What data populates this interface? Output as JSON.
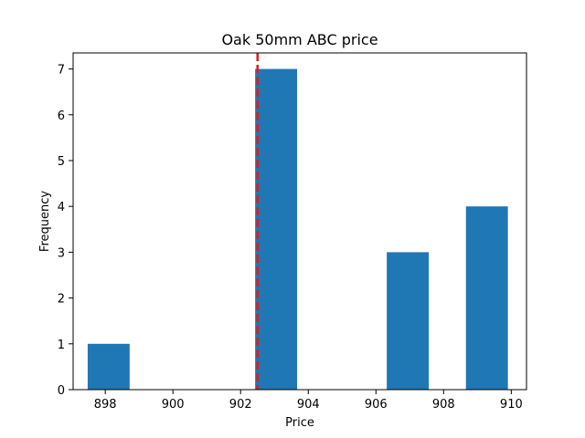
{
  "chart_data": {
    "type": "bar",
    "subtype": "histogram",
    "title": "Oak 50mm ABC price",
    "xlabel": "Price",
    "ylabel": "Frequency",
    "xlim": [
      897.05,
      910.45
    ],
    "ylim": [
      0,
      7.35
    ],
    "xticks": [
      898,
      900,
      902,
      904,
      906,
      908,
      910
    ],
    "yticks": [
      0,
      1,
      2,
      3,
      4,
      5,
      6,
      7
    ],
    "bars": [
      {
        "x0": 897.48,
        "x1": 898.72,
        "value": 1
      },
      {
        "x0": 902.43,
        "x1": 903.67,
        "value": 7
      },
      {
        "x0": 906.32,
        "x1": 907.56,
        "value": 3
      },
      {
        "x0": 908.66,
        "x1": 909.9,
        "value": 4
      }
    ],
    "reference_line": {
      "x": 902.5,
      "style": "dashed",
      "color": "#e41a1c"
    },
    "bar_color": "#1f77b4",
    "grid": false,
    "legend": "none"
  }
}
